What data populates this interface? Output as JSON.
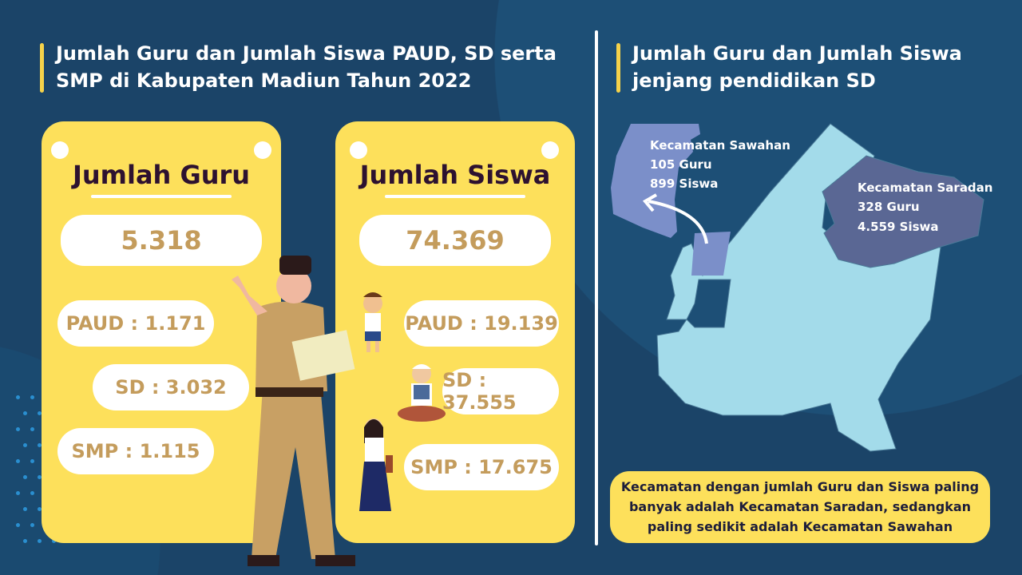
{
  "left": {
    "title_line1": "Jumlah Guru dan Jumlah Siswa PAUD, SD serta",
    "title_line2": "SMP di Kabupaten Madiun Tahun 2022"
  },
  "guru": {
    "heading": "Jumlah Guru",
    "total": "5.318",
    "paud": "PAUD : 1.171",
    "sd": "SD : 3.032",
    "smp": "SMP : 1.115"
  },
  "siswa": {
    "heading": "Jumlah Siswa",
    "total": "74.369",
    "paud": "PAUD : 19.139",
    "sd": "SD : 37.555",
    "smp": "SMP : 17.675"
  },
  "right": {
    "title_line1": "Jumlah Guru dan Jumlah Siswa",
    "title_line2": "jenjang pendidikan SD"
  },
  "map": {
    "sawahan": {
      "name": "Kecamatan Sawahan",
      "guru": "105 Guru",
      "siswa": "899 Siswa",
      "color": "#7b8fc9"
    },
    "saradan": {
      "name": "Kecamatan Saradan",
      "guru": "328 Guru",
      "siswa": "4.559 Siswa",
      "color": "#5a6794"
    },
    "base_color": "#a3dbea"
  },
  "note": {
    "line1": "Kecamatan dengan jumlah Guru dan Siswa paling",
    "line2": "banyak adalah Kecamatan Saradan, sedangkan",
    "line3": "paling sedikit adalah Kecamatan Sawahan"
  },
  "colors": {
    "background": "#1b4468",
    "card": "#fde05b",
    "accent": "#f5d24a",
    "value_text": "#c49c5c"
  }
}
